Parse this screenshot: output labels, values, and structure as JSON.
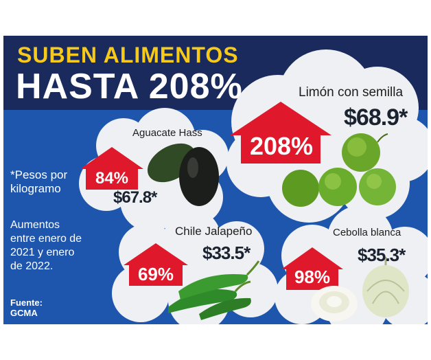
{
  "header": {
    "title_line1": "SUBEN ALIMENTOS",
    "title_line2": "HASTA 208%"
  },
  "notes": {
    "unit": "*Pesos por kilogramo",
    "period": "Aumentos entre enero de 2021 y enero de 2022.",
    "source": "Fuente: GCMA"
  },
  "products": [
    {
      "name": "Limón con semilla",
      "increase": "208%",
      "price": "$68.9*",
      "image": "limes"
    },
    {
      "name": "Aguacate Hass",
      "increase": "84%",
      "price": "$67.8*",
      "image": "avocado"
    },
    {
      "name": "Chile Jalapeño",
      "increase": "69%",
      "price": "$33.5*",
      "image": "jalapenos"
    },
    {
      "name": "Cebolla blanca",
      "increase": "98%",
      "price": "$35.3*",
      "image": "onions"
    }
  ],
  "colors": {
    "background": "#1f56ad",
    "header": "#1b2a5c",
    "title_accent": "#f6c91a",
    "arrow": "#e0182b",
    "cloud": "#eef0f3"
  }
}
